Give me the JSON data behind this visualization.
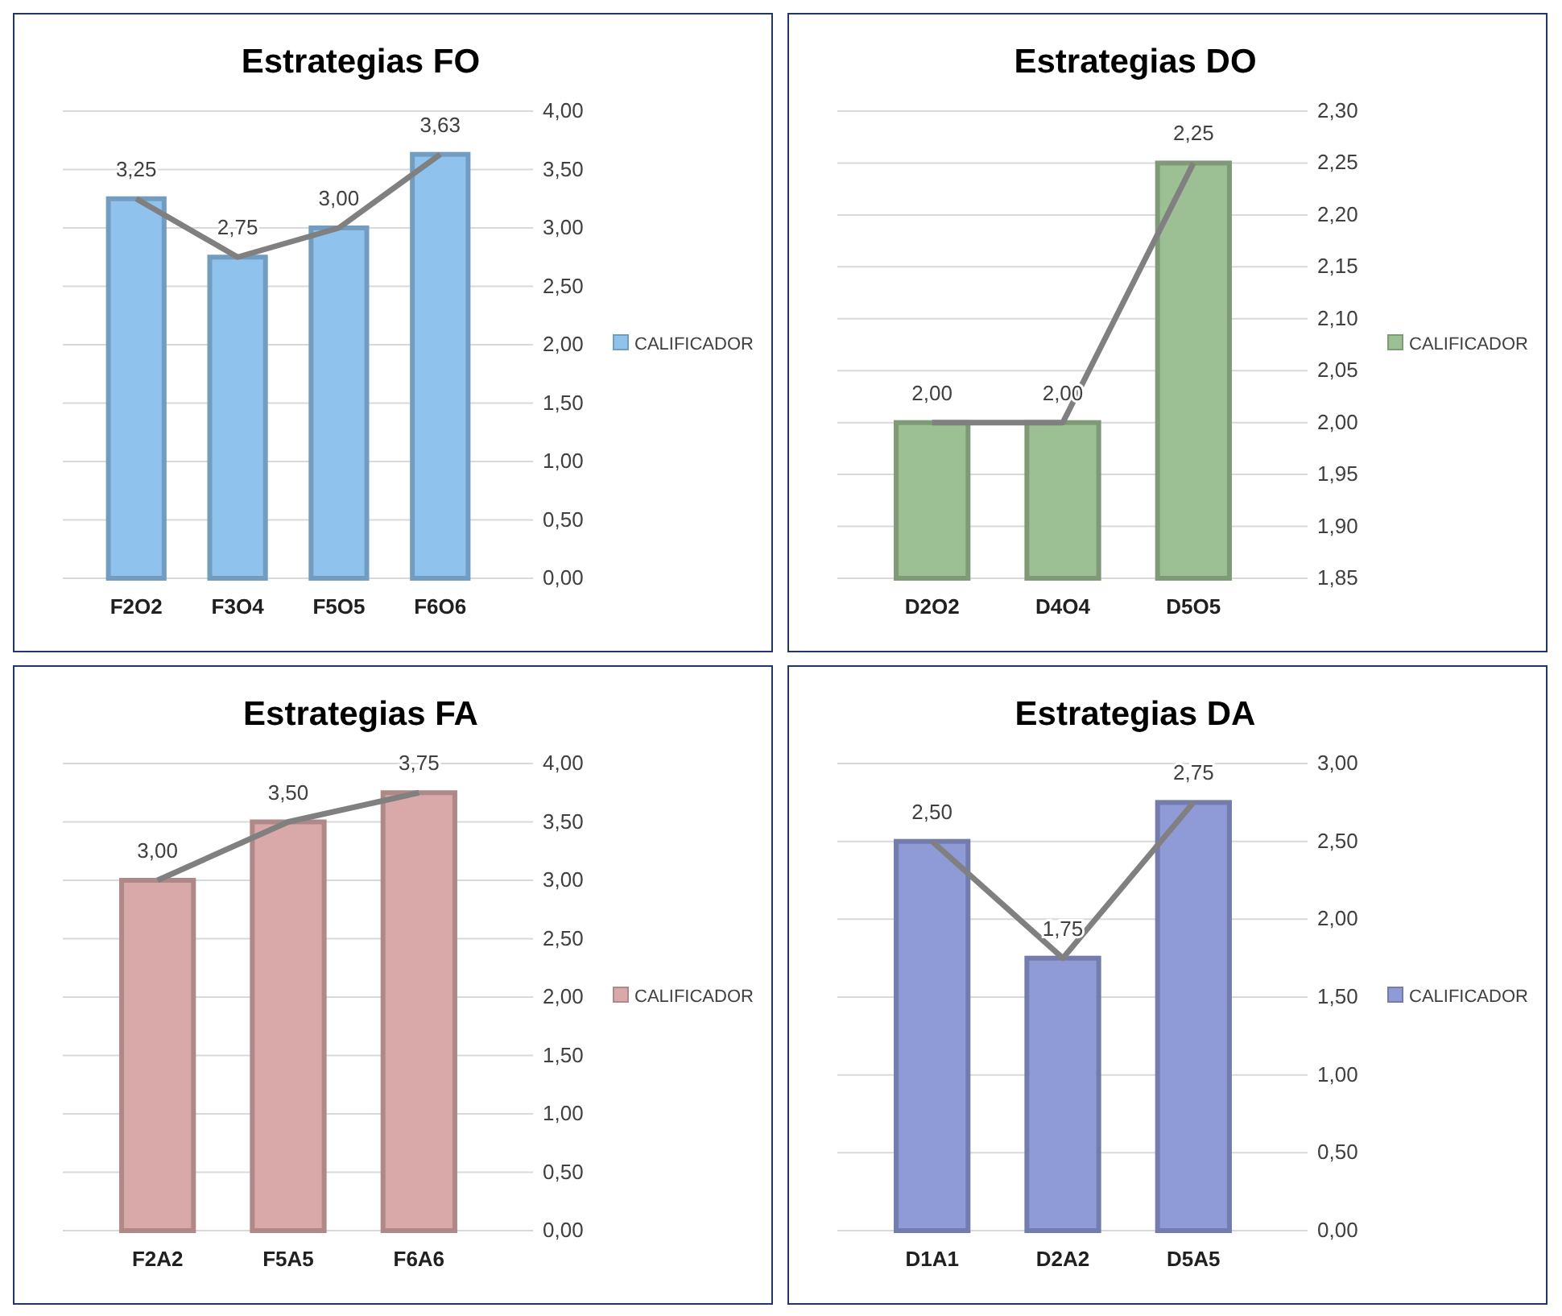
{
  "chart_data": [
    {
      "type": "bar",
      "title": "Estrategias FO",
      "categories": [
        "F2O2",
        "F3O4",
        "F5O5",
        "F6O6"
      ],
      "series": [
        {
          "name": "CALIFICADOR",
          "color": "#8fc3ee",
          "values": [
            3.25,
            2.75,
            3.0,
            3.63
          ],
          "value_labels": [
            "3,25",
            "2,75",
            "3,00",
            "3,63"
          ]
        },
        {
          "type": "line",
          "color": "#808080",
          "values": [
            3.25,
            2.75,
            3.0,
            3.63
          ]
        }
      ],
      "ylim": [
        0,
        4
      ],
      "yticks": [
        {
          "value": 0,
          "label": "0,00"
        },
        {
          "value": 0.5,
          "label": "0,50"
        },
        {
          "value": 1,
          "label": "1,00"
        },
        {
          "value": 1.5,
          "label": "1,50"
        },
        {
          "value": 2,
          "label": "2,00"
        },
        {
          "value": 2.5,
          "label": "2,50"
        },
        {
          "value": 3,
          "label": "3,00"
        },
        {
          "value": 3.5,
          "label": "3,50"
        },
        {
          "value": 4,
          "label": "4,00"
        }
      ],
      "grid": "y",
      "legend": "right"
    },
    {
      "type": "bar",
      "title": "Estrategias DO",
      "categories": [
        "D2O2",
        "D4O4",
        "D5O5"
      ],
      "series": [
        {
          "name": "CALIFICADOR",
          "color": "#9cbf94",
          "values": [
            2.0,
            2.0,
            2.25
          ],
          "value_labels": [
            "2,00",
            "2,00",
            "2,25"
          ]
        },
        {
          "type": "line",
          "color": "#808080",
          "values": [
            2.0,
            2.0,
            2.25
          ]
        }
      ],
      "ylim": [
        1.85,
        2.3
      ],
      "yticks": [
        {
          "value": 1.85,
          "label": "1,85"
        },
        {
          "value": 1.9,
          "label": "1,90"
        },
        {
          "value": 1.95,
          "label": "1,95"
        },
        {
          "value": 2.0,
          "label": "2,00"
        },
        {
          "value": 2.05,
          "label": "2,05"
        },
        {
          "value": 2.1,
          "label": "2,10"
        },
        {
          "value": 2.15,
          "label": "2,15"
        },
        {
          "value": 2.2,
          "label": "2,20"
        },
        {
          "value": 2.25,
          "label": "2,25"
        },
        {
          "value": 2.3,
          "label": "2,30"
        }
      ],
      "grid": "y",
      "legend": "right"
    },
    {
      "type": "bar",
      "title": "Estrategias FA",
      "categories": [
        "F2A2",
        "F5A5",
        "F6A6"
      ],
      "series": [
        {
          "name": "CALIFICADOR",
          "color": "#d9a8a8",
          "values": [
            3.0,
            3.5,
            3.75
          ],
          "value_labels": [
            "3,00",
            "3,50",
            "3,75"
          ]
        },
        {
          "type": "line",
          "color": "#808080",
          "values": [
            3.0,
            3.5,
            3.75
          ]
        }
      ],
      "ylim": [
        0,
        4
      ],
      "yticks": [
        {
          "value": 0,
          "label": "0,00"
        },
        {
          "value": 0.5,
          "label": "0,50"
        },
        {
          "value": 1,
          "label": "1,00"
        },
        {
          "value": 1.5,
          "label": "1,50"
        },
        {
          "value": 2,
          "label": "2,00"
        },
        {
          "value": 2.5,
          "label": "2,50"
        },
        {
          "value": 3,
          "label": "3,00"
        },
        {
          "value": 3.5,
          "label": "3,50"
        },
        {
          "value": 4,
          "label": "4,00"
        }
      ],
      "grid": "y",
      "legend": "right"
    },
    {
      "type": "bar",
      "title": "Estrategias DA",
      "categories": [
        "D1A1",
        "D2A2",
        "D5A5"
      ],
      "series": [
        {
          "name": "CALIFICADOR",
          "color": "#8f9bd6",
          "values": [
            2.5,
            1.75,
            2.75
          ],
          "value_labels": [
            "2,50",
            "1,75",
            "2,75"
          ]
        },
        {
          "type": "line",
          "color": "#808080",
          "values": [
            2.5,
            1.75,
            2.75
          ]
        }
      ],
      "ylim": [
        0,
        3
      ],
      "yticks": [
        {
          "value": 0,
          "label": "0,00"
        },
        {
          "value": 0.5,
          "label": "0,50"
        },
        {
          "value": 1,
          "label": "1,00"
        },
        {
          "value": 1.5,
          "label": "1,50"
        },
        {
          "value": 2,
          "label": "2,00"
        },
        {
          "value": 2.5,
          "label": "2,50"
        },
        {
          "value": 3,
          "label": "3,00"
        }
      ],
      "grid": "y",
      "legend": "right"
    }
  ]
}
